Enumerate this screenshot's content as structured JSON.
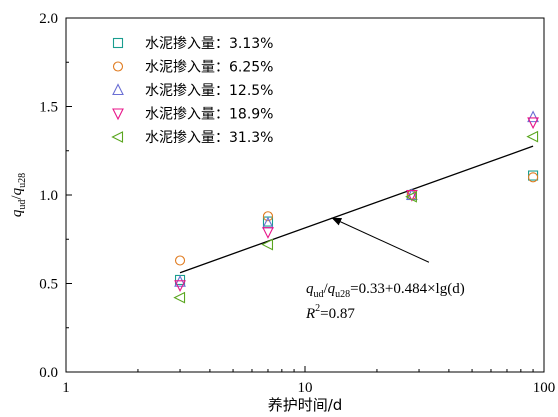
{
  "chart_data": {
    "type": "scatter",
    "xscale": "log",
    "xlim": [
      1,
      100
    ],
    "ylim": [
      0.0,
      2.0
    ],
    "x_ticks": [
      {
        "value": 1,
        "label": "1"
      },
      {
        "value": 10,
        "label": "10"
      },
      {
        "value": 100,
        "label": "100"
      }
    ],
    "y_ticks": [
      {
        "value": 0.0,
        "label": "0.0"
      },
      {
        "value": 0.5,
        "label": "0.5"
      },
      {
        "value": 1.0,
        "label": "1.0"
      },
      {
        "value": 1.5,
        "label": "1.5"
      },
      {
        "value": 2.0,
        "label": "2.0"
      }
    ],
    "xlabel": "养护时间/d",
    "ylabel": {
      "q1": "q",
      "sub1": "ud",
      "slash": "/",
      "q2": "q",
      "sub2": "u28"
    },
    "grid": false,
    "legend_position": "top-left",
    "series": [
      {
        "name": "水泥掺入量：3.13%",
        "marker": "square",
        "color": "#1a9e8f",
        "x": [
          3,
          7,
          28,
          90
        ],
        "y": [
          0.52,
          0.85,
          1.0,
          1.11
        ]
      },
      {
        "name": "水泥掺入量：6.25%",
        "marker": "circle",
        "color": "#e07b1f",
        "x": [
          3,
          7,
          28,
          90
        ],
        "y": [
          0.63,
          0.88,
          1.0,
          1.1
        ]
      },
      {
        "name": "水泥掺入量：12.5%",
        "marker": "triangle-up",
        "color": "#6b6fd4",
        "x": [
          3,
          7,
          28,
          90
        ],
        "y": [
          0.51,
          0.84,
          1.0,
          1.44
        ]
      },
      {
        "name": "水泥掺入量：18.9%",
        "marker": "triangle-down",
        "color": "#e8168a",
        "x": [
          3,
          7,
          28,
          90
        ],
        "y": [
          0.49,
          0.79,
          1.0,
          1.41
        ]
      },
      {
        "name": "水泥掺入量：31.3%",
        "marker": "triangle-left",
        "color": "#5aa61f",
        "x": [
          3,
          7,
          28,
          90
        ],
        "y": [
          0.42,
          0.72,
          0.99,
          1.33
        ]
      }
    ],
    "fit_line": {
      "x": [
        3,
        90
      ],
      "intercept": 0.33,
      "slope": 0.484,
      "color": "#000000"
    },
    "annotation": {
      "equation": {
        "q1": "q",
        "sub1": "ud",
        "slash": "/",
        "q2": "q",
        "sub2": "u28",
        "rest": "=0.33+0.484×lg(d)"
      },
      "r2": {
        "r": "R",
        "sup": "2",
        "rest": "=0.87"
      },
      "arrow_target": {
        "x": 13,
        "y": 0.87
      },
      "arrow_tail": {
        "x": 33,
        "y": 0.62
      }
    }
  }
}
